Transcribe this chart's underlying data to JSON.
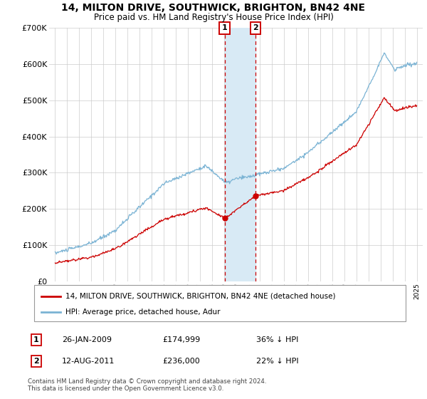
{
  "title": "14, MILTON DRIVE, SOUTHWICK, BRIGHTON, BN42 4NE",
  "subtitle": "Price paid vs. HM Land Registry's House Price Index (HPI)",
  "legend_label_red": "14, MILTON DRIVE, SOUTHWICK, BRIGHTON, BN42 4NE (detached house)",
  "legend_label_blue": "HPI: Average price, detached house, Adur",
  "footnote": "Contains HM Land Registry data © Crown copyright and database right 2024.\nThis data is licensed under the Open Government Licence v3.0.",
  "sale1_date": "26-JAN-2009",
  "sale1_price": "£174,999",
  "sale1_hpi": "36% ↓ HPI",
  "sale1_year": 2009.07,
  "sale1_price_val": 174999,
  "sale2_date": "12-AUG-2011",
  "sale2_price": "£236,000",
  "sale2_hpi": "22% ↓ HPI",
  "sale2_year": 2011.62,
  "sale2_price_val": 236000,
  "color_red": "#cc0000",
  "color_blue": "#7ab3d4",
  "color_shade": "#d8eaf5",
  "ylim": [
    0,
    700000
  ],
  "xlim": [
    1994.5,
    2025.5
  ],
  "yticks": [
    0,
    100000,
    200000,
    300000,
    400000,
    500000,
    600000,
    700000
  ]
}
